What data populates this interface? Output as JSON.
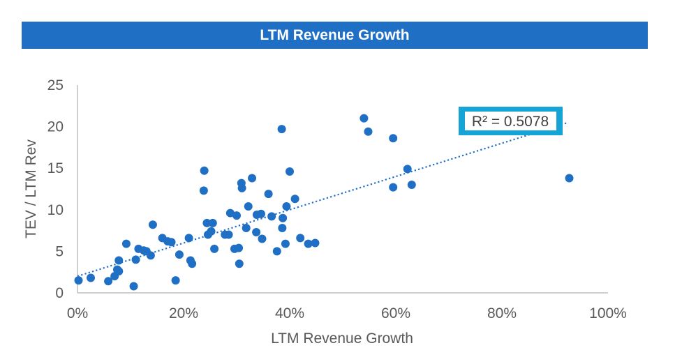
{
  "header": {
    "title": "LTM Revenue Growth"
  },
  "chart_data": {
    "type": "scatter",
    "xlabel": "LTM Revenue Growth",
    "ylabel": "TEV / LTM Rev",
    "xlim": [
      0,
      1
    ],
    "ylim": [
      0,
      25
    ],
    "x_ticks": [
      "0%",
      "20%",
      "40%",
      "60%",
      "80%",
      "100%"
    ],
    "y_ticks": [
      "0",
      "5",
      "10",
      "15",
      "20",
      "25"
    ],
    "grid": false,
    "legend": "none",
    "colors": {
      "points": "#1f6fc5",
      "trendline": "#1f6fc5",
      "label_border": "#16a3d6",
      "title_bar": "#1f6fc5"
    },
    "trendline": {
      "type": "linear",
      "r2_label": "R² = 0.5078",
      "start": [
        0.0,
        2.0
      ],
      "end": [
        0.925,
        20.5
      ]
    },
    "points": [
      [
        0.002,
        1.5
      ],
      [
        0.025,
        1.8
      ],
      [
        0.058,
        1.4
      ],
      [
        0.07,
        2.0
      ],
      [
        0.075,
        2.8
      ],
      [
        0.078,
        2.6
      ],
      [
        0.078,
        3.9
      ],
      [
        0.092,
        5.9
      ],
      [
        0.106,
        0.8
      ],
      [
        0.11,
        4.0
      ],
      [
        0.115,
        5.3
      ],
      [
        0.125,
        5.1
      ],
      [
        0.13,
        5.0
      ],
      [
        0.138,
        4.5
      ],
      [
        0.142,
        8.2
      ],
      [
        0.16,
        6.6
      ],
      [
        0.17,
        6.2
      ],
      [
        0.177,
        6.1
      ],
      [
        0.185,
        1.5
      ],
      [
        0.192,
        4.6
      ],
      [
        0.21,
        6.6
      ],
      [
        0.213,
        3.9
      ],
      [
        0.216,
        3.5
      ],
      [
        0.238,
        12.3
      ],
      [
        0.239,
        14.7
      ],
      [
        0.244,
        8.4
      ],
      [
        0.246,
        7.0
      ],
      [
        0.252,
        7.4
      ],
      [
        0.255,
        8.4
      ],
      [
        0.258,
        5.3
      ],
      [
        0.278,
        7.0
      ],
      [
        0.285,
        7.0
      ],
      [
        0.288,
        9.6
      ],
      [
        0.296,
        5.3
      ],
      [
        0.3,
        9.3
      ],
      [
        0.304,
        5.4
      ],
      [
        0.305,
        3.5
      ],
      [
        0.309,
        13.2
      ],
      [
        0.31,
        12.6
      ],
      [
        0.318,
        7.8
      ],
      [
        0.322,
        10.4
      ],
      [
        0.329,
        13.8
      ],
      [
        0.337,
        7.3
      ],
      [
        0.338,
        9.4
      ],
      [
        0.346,
        9.5
      ],
      [
        0.348,
        6.5
      ],
      [
        0.36,
        11.9
      ],
      [
        0.366,
        9.2
      ],
      [
        0.376,
        5.0
      ],
      [
        0.385,
        19.7
      ],
      [
        0.386,
        7.8
      ],
      [
        0.387,
        9.0
      ],
      [
        0.392,
        5.9
      ],
      [
        0.394,
        10.4
      ],
      [
        0.4,
        14.6
      ],
      [
        0.41,
        11.3
      ],
      [
        0.42,
        6.6
      ],
      [
        0.435,
        5.9
      ],
      [
        0.448,
        6.0
      ],
      [
        0.54,
        21.0
      ],
      [
        0.548,
        19.4
      ],
      [
        0.595,
        18.6
      ],
      [
        0.595,
        12.7
      ],
      [
        0.622,
        14.9
      ],
      [
        0.63,
        13.0
      ],
      [
        0.927,
        13.8
      ]
    ]
  }
}
